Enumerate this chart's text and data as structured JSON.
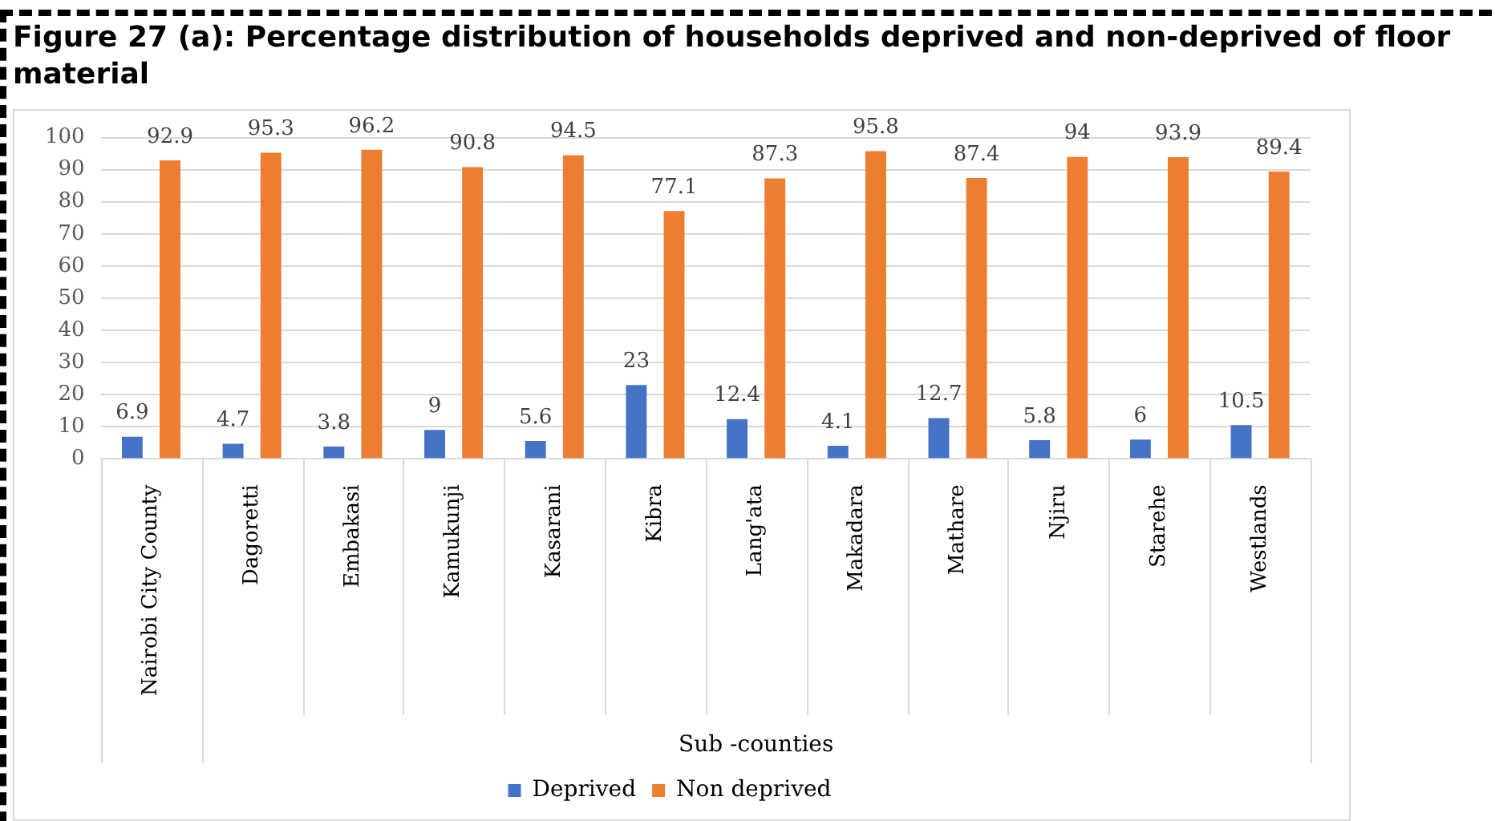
{
  "chart_data": {
    "type": "bar",
    "title": "Figure 27 (a): Percentage distribution of households deprived and non-deprived of floor material",
    "xlabel": "Sub -counties",
    "categories": [
      "Nairobi City County",
      "Dagoretti",
      "Embakasi",
      "Kamukunji",
      "Kasarani",
      "Kibra",
      "Lang'ata",
      "Makadara",
      "Mathare",
      "Njiru",
      "Starehe",
      "Westlands"
    ],
    "series": [
      {
        "name": "Deprived",
        "color": "#4472c4",
        "values": [
          6.9,
          4.7,
          3.8,
          9,
          5.6,
          23,
          12.4,
          4.1,
          12.7,
          5.8,
          6,
          10.5
        ]
      },
      {
        "name": "Non deprived",
        "color": "#ed7d31",
        "values": [
          92.9,
          95.3,
          96.2,
          90.8,
          94.5,
          77.1,
          87.3,
          95.8,
          87.4,
          94,
          93.9,
          89.4
        ]
      }
    ],
    "ylim": [
      0,
      100
    ],
    "yticks": [
      0,
      10,
      20,
      30,
      40,
      50,
      60,
      70,
      80,
      90,
      100
    ],
    "grid": "y",
    "legend": "bottom",
    "data_labels": true
  }
}
